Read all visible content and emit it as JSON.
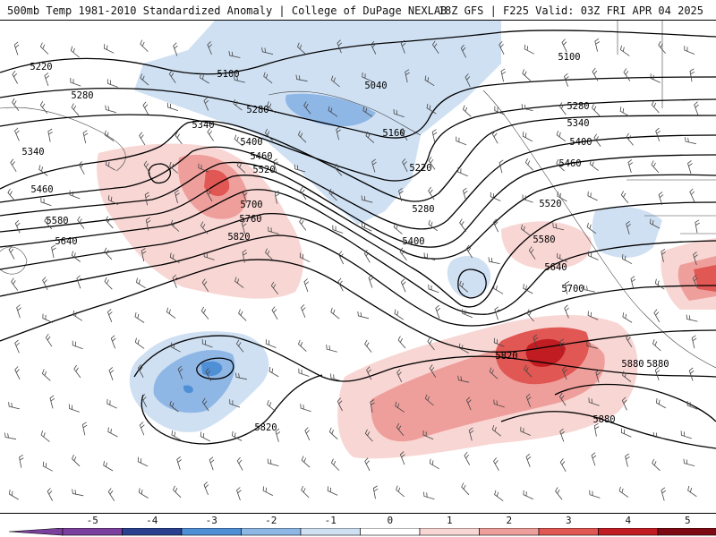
{
  "header": {
    "title_left": "500mb Temp 1981-2010 Standardized Anomaly | College of DuPage NEXLAB",
    "title_right": "18Z GFS | F225 Valid: 03Z FRI APR 04 2025"
  },
  "map": {
    "contour_labels": [
      "5220",
      "5100",
      "5040",
      "5280",
      "5340",
      "5160",
      "5400",
      "5460",
      "5520",
      "5580",
      "5640",
      "5700",
      "5760",
      "5820",
      "5880",
      "5220",
      "5280",
      "5100",
      "5280",
      "5340",
      "5400",
      "5460",
      "5520",
      "5580",
      "5640",
      "5700",
      "5820",
      "5880",
      "5880",
      "5820",
      "5460",
      "5340",
      "5400",
      "5280"
    ],
    "anomaly_colors": {
      "neg5": "#7b3f9e",
      "neg4": "#2a3f8f",
      "neg3": "#4f8fd6",
      "neg2": "#8fb7e6",
      "neg1": "#cfe0f3",
      "zero": "#ffffff",
      "pos1": "#f8d6d4",
      "pos2": "#ef9f9b",
      "pos3": "#e05753",
      "pos4": "#c01c22",
      "pos5": "#7d0a13",
      "pos6": "#f2c200"
    }
  },
  "colorbar": {
    "tick_labels": [
      "-5",
      "-4",
      "-3",
      "-2",
      "-1",
      "0",
      "1",
      "2",
      "3",
      "4",
      "5"
    ]
  }
}
